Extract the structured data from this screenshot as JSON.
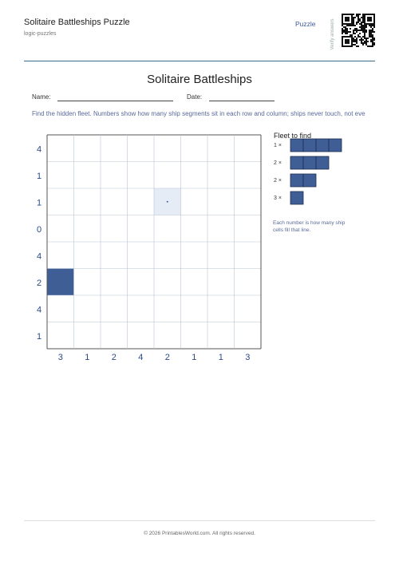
{
  "header": {
    "title": "Solitaire Battleships Puzzle",
    "subtitle": "logic-puzzles",
    "tag": "Puzzle",
    "qr_label": "Verify answers"
  },
  "puzzle": {
    "title": "Solitaire Battleships",
    "name_label": "Name:",
    "date_label": "Date:",
    "instructions": "Find the hidden fleet. Numbers show how many ship segments sit in each row and column; ships never touch, not eve",
    "row_clues": [
      4,
      1,
      1,
      0,
      4,
      2,
      4,
      1
    ],
    "col_clues": [
      3,
      1,
      2,
      4,
      2,
      1,
      1,
      3
    ],
    "givens": [
      {
        "row": 2,
        "col": 4,
        "kind": "water"
      },
      {
        "row": 5,
        "col": 0,
        "kind": "ship"
      }
    ]
  },
  "fleet": {
    "title": "Fleet to find",
    "ships": [
      {
        "label": "1 ×",
        "length": 4
      },
      {
        "label": "2 ×",
        "length": 3
      },
      {
        "label": "2 ×",
        "length": 2
      },
      {
        "label": "3 ×",
        "length": 1
      }
    ],
    "note": "Each number is how many ship cells fill that line."
  },
  "footer": {
    "text": "© 2026 PrintablesWorld.com. All rights reserved."
  }
}
